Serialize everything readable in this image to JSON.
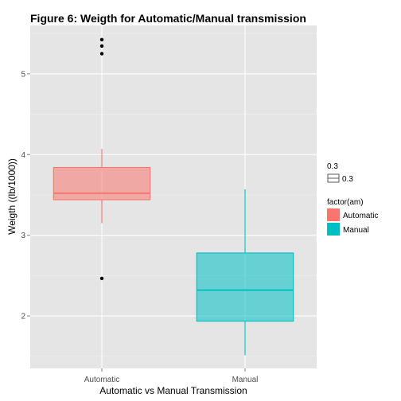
{
  "chart_data": {
    "type": "box",
    "title": "Figure 6: Weigth for Automatic/Manual transmission",
    "xlabel": "Automatic vs Manual  Transmission",
    "ylabel": "Weigth ((lb/1000))",
    "categories": [
      "Automatic",
      "Manual"
    ],
    "ylim": [
      1.35,
      5.6
    ],
    "yticks": [
      2,
      3,
      4,
      5
    ],
    "grid": true,
    "legend_position": "right",
    "boxes": [
      {
        "category": "Automatic",
        "min": 3.15,
        "q1": 3.44,
        "median": 3.52,
        "q3": 3.84,
        "max": 4.07,
        "outliers": [
          2.465,
          5.25,
          5.345,
          5.424
        ],
        "fill": "#F8766D",
        "line": "#F8766D"
      },
      {
        "category": "Manual",
        "min": 1.513,
        "q1": 1.935,
        "median": 2.32,
        "q3": 2.78,
        "max": 3.57,
        "outliers": [],
        "fill": "#00BFC4",
        "line": "#00BFC4"
      }
    ],
    "legends": [
      {
        "title": "0.3",
        "entries": [
          {
            "label": "0.3",
            "kind": "box-outline"
          }
        ]
      },
      {
        "title": "factor(am)",
        "entries": [
          {
            "label": "Automatic",
            "color": "#F8766D"
          },
          {
            "label": "Manual",
            "color": "#00BFC4"
          }
        ]
      }
    ],
    "colors": {
      "panel_background": "#E5E5E5",
      "grid_major": "#FFFFFF",
      "grid_minor": "#F2F2F2",
      "outlier": "#000000"
    }
  }
}
